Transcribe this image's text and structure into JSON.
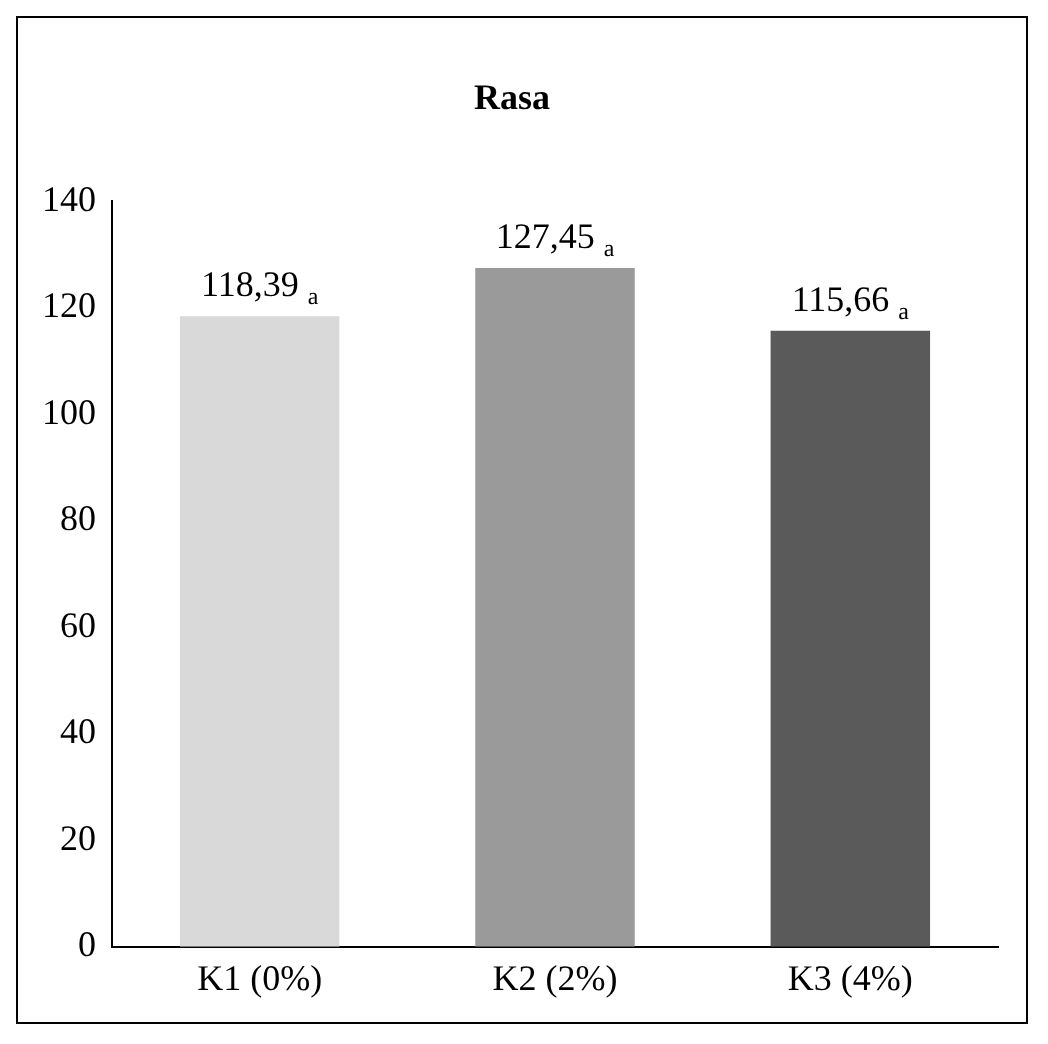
{
  "chart_data": {
    "type": "bar",
    "title": "Rasa",
    "categories": [
      "K1 (0%)",
      "K2 (2%)",
      "K3 (4%)"
    ],
    "values": [
      118.39,
      127.45,
      115.66
    ],
    "colors": [
      "#d9d9d9",
      "#9a9a9a",
      "#5a5a5a"
    ],
    "value_labels": [
      "118,39 $_{a}$",
      "127,45 $_{a}$",
      "115,66 $_{a}$"
    ],
    "ylim": [
      0,
      140
    ],
    "yticks": [
      0,
      20,
      40,
      60,
      80,
      100,
      120,
      140
    ],
    "grid": false,
    "legend": false
  }
}
